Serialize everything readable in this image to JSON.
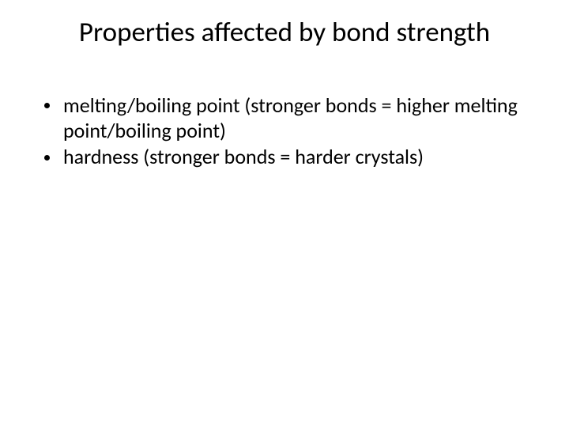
{
  "slide": {
    "title": "Properties affected by bond strength",
    "title_fontsize": 35,
    "title_color": "#000000",
    "background_color": "#ffffff",
    "bullets": [
      {
        "text": "melting/boiling point (stronger bonds = higher melting point/boiling point)"
      },
      {
        "text": "hardness (stronger bonds = harder crystals)"
      }
    ],
    "bullet_fontsize": 26,
    "bullet_color": "#000000",
    "bullet_marker_color": "#000000"
  }
}
